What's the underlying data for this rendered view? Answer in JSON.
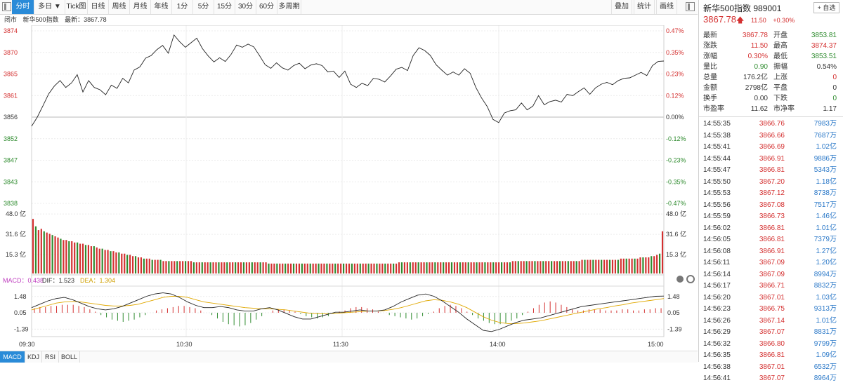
{
  "toolbar": {
    "tabs": [
      "分时",
      "多日 ▼",
      "Tick图",
      "日线",
      "周线",
      "月线",
      "年线",
      "1分",
      "5分",
      "15分",
      "30分",
      "60分",
      "多周期"
    ],
    "right_tabs": [
      "叠加",
      "统计",
      "画线"
    ]
  },
  "subhead": {
    "status": "闭市",
    "name": "新华500指数",
    "latest_label": "最新",
    "latest_value": "3867.78"
  },
  "axes": {
    "price_ticks": [
      "3874",
      "3870",
      "3865",
      "3861",
      "3856",
      "3852",
      "3847",
      "3843",
      "3838"
    ],
    "pct_ticks": [
      "0.47%",
      "0.35%",
      "0.23%",
      "0.12%",
      "0.00%",
      "-0.12%",
      "-0.23%",
      "-0.35%",
      "-0.47%"
    ],
    "vol_ticks": [
      "48.0 亿",
      "31.6 亿",
      "15.3 亿"
    ],
    "macd_ticks": [
      "1.48",
      "0.05",
      "-1.39"
    ],
    "time_ticks": [
      "09:30",
      "10:30",
      "11:30",
      "14:00",
      "15:00"
    ]
  },
  "macd_legend": {
    "macd": "MACD：0.438",
    "dif": "DIF：1.523",
    "dea": "DEA：1.304"
  },
  "bottom_tabs": [
    "MACD",
    "KDJ",
    "RSI",
    "BOLL"
  ],
  "chart_data": {
    "type": "line",
    "title": "新华500指数",
    "xlabel": "",
    "ylabel": "",
    "x": [
      "09:30",
      "10:30",
      "11:30",
      "14:00",
      "15:00"
    ],
    "ylim": [
      3836.6,
      3874.4
    ],
    "prev_close": 3856.3,
    "price_series": [
      3853.5,
      3855.5,
      3858,
      3860.6,
      3862.3,
      3863.5,
      3862,
      3863,
      3864.8,
      3861,
      3863.5,
      3862,
      3861.5,
      3860.4,
      3862.5,
      3861.8,
      3864,
      3863,
      3865.8,
      3866.5,
      3868.4,
      3869,
      3870.3,
      3871.2,
      3869.5,
      3873.5,
      3872,
      3870.8,
      3871.8,
      3872.8,
      3870.5,
      3868.9,
      3867.6,
      3868.5,
      3867.7,
      3869.2,
      3871.3,
      3870.8,
      3871.5,
      3870.9,
      3869,
      3867,
      3866.2,
      3867.4,
      3866.3,
      3865.8,
      3866.8,
      3867.3,
      3866.1,
      3866.9,
      3867.2,
      3866.8,
      3865.4,
      3865.6,
      3864.2,
      3865.6,
      3862.7,
      3862,
      3862.9,
      3862.4,
      3864,
      3863.8,
      3863.2,
      3864.5,
      3866,
      3866.4,
      3865.7,
      3869,
      3870.7,
      3870.1,
      3869,
      3867,
      3865.8,
      3864.7,
      3865.4,
      3864.7,
      3866.1,
      3865.1,
      3862,
      3859.7,
      3857.8,
      3855,
      3854.3,
      3856.4,
      3856.9,
      3857.1,
      3858.6,
      3857.1,
      3857.9,
      3860.2,
      3858.2,
      3858.9,
      3859.2,
      3858.8,
      3860.5,
      3860.2,
      3861.1,
      3861.9,
      3860.5,
      3861.9,
      3862.7,
      3863.1,
      3862.6,
      3863.5,
      3864,
      3864.1,
      3864.7,
      3865.3,
      3864.6,
      3866.8,
      3867.7,
      3867.8
    ],
    "volume_yi": [
      44,
      38,
      35,
      36,
      34,
      33,
      32,
      31,
      30,
      29,
      28,
      27,
      27,
      26,
      26,
      25,
      25,
      24,
      24,
      23,
      23,
      22,
      22,
      21,
      20,
      20,
      19,
      19,
      18,
      18,
      17,
      17,
      16,
      16,
      15,
      15,
      14,
      14,
      13,
      13,
      12,
      12,
      12,
      11,
      11,
      11,
      11,
      10,
      10,
      10,
      10,
      10,
      10,
      10,
      10,
      10,
      10,
      10,
      9,
      9,
      9,
      9,
      9,
      9,
      9,
      9,
      9,
      9,
      9,
      9,
      9,
      9,
      9,
      9,
      9,
      9,
      9,
      9,
      9,
      9,
      9,
      9,
      9,
      9,
      9,
      8,
      8,
      8,
      8,
      8,
      8,
      8,
      8,
      8,
      8,
      8,
      8,
      8,
      8,
      8,
      8,
      8,
      8,
      8,
      8,
      8,
      8,
      8,
      8,
      8,
      8,
      8,
      8,
      8,
      8,
      8,
      8,
      8,
      8,
      8,
      8,
      8,
      8,
      8,
      8,
      8,
      8,
      8,
      8,
      8,
      8,
      8,
      9,
      9,
      9,
      9,
      9,
      9,
      9,
      9,
      9,
      9,
      9,
      9,
      9,
      9,
      9,
      9,
      9,
      9,
      9,
      9,
      9,
      9,
      9,
      9,
      9,
      9,
      9,
      9,
      9,
      9,
      9,
      9,
      9,
      9,
      9,
      9,
      9,
      9,
      9,
      9,
      9,
      10,
      10,
      10,
      10,
      10,
      10,
      10,
      10,
      10,
      10,
      10,
      10,
      10,
      10,
      10,
      10,
      10,
      10,
      10,
      10,
      10,
      10,
      10,
      10,
      10,
      11,
      11,
      11,
      11,
      11,
      11,
      11,
      11,
      11,
      11,
      11,
      11,
      11,
      11,
      12,
      12,
      12,
      12,
      12,
      12,
      12,
      13,
      13,
      13,
      13,
      14,
      14,
      15,
      16,
      34
    ],
    "macd_hist": [
      0.4,
      0.5,
      0.5,
      0.6,
      0.6,
      0.7,
      0.7,
      0.7,
      0.6,
      0.5,
      0.3,
      0.1,
      -0.2,
      -0.4,
      -0.6,
      -0.7,
      -0.8,
      -0.7,
      -0.6,
      -0.4,
      -0.2,
      0,
      0.2,
      0.3,
      0.4,
      0.5,
      0.6,
      0.6,
      0.5,
      0.4,
      0.2,
      0,
      -0.2,
      -0.5,
      -0.8,
      -1,
      -1.1,
      -1.2,
      -1.1,
      -0.9,
      -0.6,
      -0.3,
      0,
      0.2,
      0.3,
      0.3,
      0.2,
      0.1,
      -0.1,
      -0.3,
      -0.4,
      -0.5,
      -0.4,
      -0.3,
      -0.1,
      0.1,
      0.2,
      0.4,
      0.5,
      0.5,
      0.4,
      0.3,
      0.1,
      0,
      -0.2,
      -0.3,
      -0.4,
      -0.5,
      -0.6,
      -0.5,
      -0.3,
      -0.1,
      0.1,
      0.4,
      0.6,
      0.7,
      0.6,
      0.4,
      0.1,
      -0.2,
      -0.5,
      -0.7,
      -0.9,
      -1,
      -1,
      -0.9,
      -0.7,
      -0.5,
      -0.2,
      0.1,
      0.4,
      0.7,
      0.9,
      1,
      0.9,
      0.7,
      0.5,
      0.3,
      0.2,
      0.2,
      0.3,
      0.3,
      0.3,
      0.2,
      0.2,
      0.2,
      0.3,
      0.3,
      0.2,
      0.2,
      0.3,
      0.3,
      0.4,
      0.4
    ],
    "dif": [
      0.5,
      0.8,
      1.1,
      1.3,
      1.4,
      1.2,
      0.9,
      0.6,
      0.4,
      0.3,
      0.4,
      0.6,
      0.9,
      1.2,
      1.5,
      1.7,
      1.8,
      1.7,
      1.4,
      1.0,
      0.7,
      0.5,
      0.5,
      0.6,
      0.5,
      0.3,
      0.2,
      0.2,
      0.4,
      0.5,
      0.3,
      0,
      -0.3,
      -0.5,
      -0.5,
      -0.3,
      -0.1,
      0.1,
      0.1,
      0.2,
      0.3,
      0.2,
      0.2,
      0.3,
      0.6,
      1.0,
      1.3,
      1.6,
      1.7,
      1.5,
      1.1,
      0.6,
      0.1,
      -0.5,
      -1.0,
      -1.5,
      -1.6,
      -1.4,
      -1.1,
      -0.8,
      -0.6,
      -0.5,
      -0.4,
      -0.2,
      0,
      0.2,
      0.4,
      0.6,
      0.7,
      0.8,
      0.9,
      1.0,
      1.1,
      1.2,
      1.3,
      1.4,
      1.5,
      1.52
    ],
    "dea": [
      0.3,
      0.5,
      0.7,
      0.9,
      1.0,
      1.05,
      1.0,
      0.9,
      0.8,
      0.7,
      0.65,
      0.65,
      0.7,
      0.8,
      1.0,
      1.2,
      1.4,
      1.5,
      1.5,
      1.4,
      1.2,
      1.0,
      0.9,
      0.8,
      0.7,
      0.6,
      0.5,
      0.45,
      0.4,
      0.4,
      0.35,
      0.3,
      0.2,
      0.1,
      0,
      -0.05,
      -0.05,
      0,
      0.05,
      0.1,
      0.15,
      0.2,
      0.2,
      0.25,
      0.35,
      0.5,
      0.7,
      0.9,
      1.1,
      1.2,
      1.15,
      1.0,
      0.8,
      0.5,
      0.1,
      -0.3,
      -0.6,
      -0.8,
      -0.9,
      -0.9,
      -0.85,
      -0.75,
      -0.65,
      -0.5,
      -0.35,
      -0.2,
      -0.05,
      0.1,
      0.25,
      0.4,
      0.5,
      0.65,
      0.75,
      0.9,
      1.0,
      1.1,
      1.2,
      1.3
    ]
  },
  "quote": {
    "title": "新华500指数  989001",
    "add_label": "+ 自选",
    "price": "3867.78",
    "arrow": "🡅",
    "change": "11.50",
    "change_pct": "+0.30%",
    "rows": [
      {
        "l1": "最新",
        "v1": "3867.78",
        "c1": "red",
        "l2": "开盘",
        "v2": "3853.81",
        "c2": "green"
      },
      {
        "l1": "涨跌",
        "v1": "11.50",
        "c1": "red",
        "l2": "最高",
        "v2": "3874.37",
        "c2": "red"
      },
      {
        "l1": "涨幅",
        "v1": "0.30%",
        "c1": "red",
        "l2": "最低",
        "v2": "3853.51",
        "c2": "green"
      },
      {
        "l1": "量比",
        "v1": "0.90",
        "c1": "green",
        "l2": "振幅",
        "v2": "0.54%",
        "c2": "dark"
      },
      {
        "l1": "总量",
        "v1": "176.2亿",
        "c1": "dark",
        "l2": "上涨",
        "v2": "0",
        "c2": "red"
      },
      {
        "l1": "金额",
        "v1": "2798亿",
        "c1": "dark",
        "l2": "平盘",
        "v2": "0",
        "c2": "dark"
      },
      {
        "l1": "换手",
        "v1": "0.00",
        "c1": "dark",
        "l2": "下跌",
        "v2": "0",
        "c2": "green"
      },
      {
        "l1": "市盈率",
        "v1": "11.62",
        "c1": "dark",
        "l2": "市净率",
        "v2": "1.17",
        "c2": "dark"
      }
    ]
  },
  "ticks": [
    {
      "t": "14:55:35",
      "p": "3866.76",
      "v": "7983万"
    },
    {
      "t": "14:55:38",
      "p": "3866.66",
      "v": "7687万"
    },
    {
      "t": "14:55:41",
      "p": "3866.69",
      "v": "1.02亿"
    },
    {
      "t": "14:55:44",
      "p": "3866.91",
      "v": "9886万"
    },
    {
      "t": "14:55:47",
      "p": "3866.81",
      "v": "5343万"
    },
    {
      "t": "14:55:50",
      "p": "3867.20",
      "v": "1.18亿"
    },
    {
      "t": "14:55:53",
      "p": "3867.12",
      "v": "8738万"
    },
    {
      "t": "14:55:56",
      "p": "3867.08",
      "v": "7517万"
    },
    {
      "t": "14:55:59",
      "p": "3866.73",
      "v": "1.46亿"
    },
    {
      "t": "14:56:02",
      "p": "3866.81",
      "v": "1.01亿"
    },
    {
      "t": "14:56:05",
      "p": "3866.81",
      "v": "7379万"
    },
    {
      "t": "14:56:08",
      "p": "3866.91",
      "v": "1.27亿"
    },
    {
      "t": "14:56:11",
      "p": "3867.09",
      "v": "1.20亿"
    },
    {
      "t": "14:56:14",
      "p": "3867.09",
      "v": "8994万"
    },
    {
      "t": "14:56:17",
      "p": "3866.71",
      "v": "8832万"
    },
    {
      "t": "14:56:20",
      "p": "3867.01",
      "v": "1.03亿"
    },
    {
      "t": "14:56:23",
      "p": "3866.75",
      "v": "9313万"
    },
    {
      "t": "14:56:26",
      "p": "3867.14",
      "v": "1.01亿"
    },
    {
      "t": "14:56:29",
      "p": "3867.07",
      "v": "8831万"
    },
    {
      "t": "14:56:32",
      "p": "3866.80",
      "v": "9799万"
    },
    {
      "t": "14:56:35",
      "p": "3866.81",
      "v": "1.09亿"
    },
    {
      "t": "14:56:38",
      "p": "3867.01",
      "v": "6532万"
    },
    {
      "t": "14:56:41",
      "p": "3867.07",
      "v": "8964万"
    }
  ],
  "colors": {
    "up": "#d43030",
    "down": "#2e8b2e",
    "price_line": "#222222",
    "dif": "#222222",
    "dea": "#e0a800",
    "accent": "#2a8bd8"
  }
}
